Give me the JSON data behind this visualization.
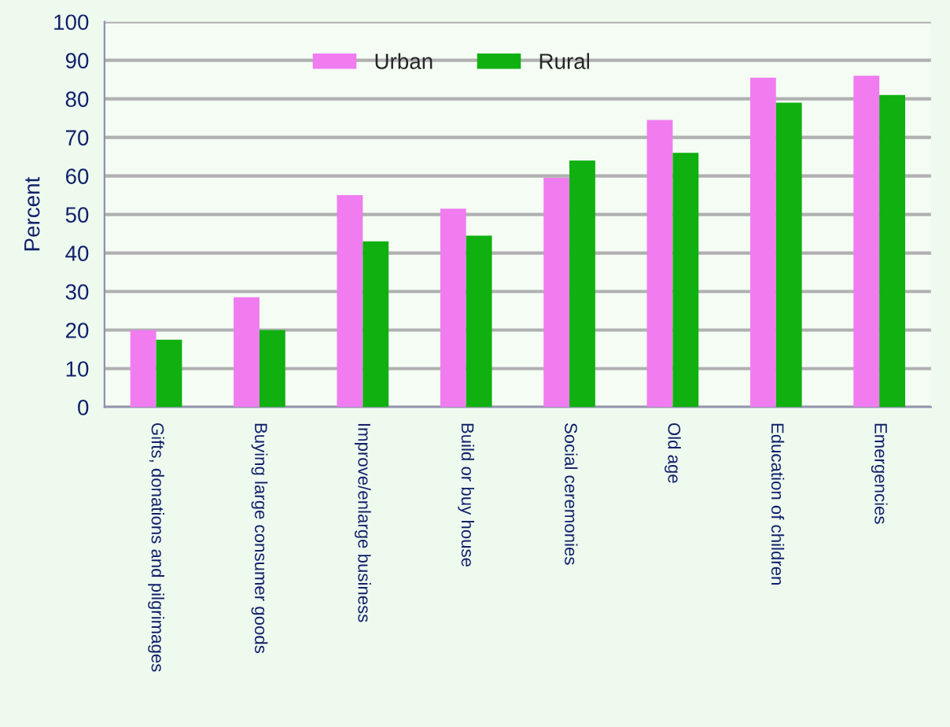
{
  "chart_data": {
    "type": "bar",
    "ylabel": "Percent",
    "categories": [
      "Gifts, donations and pilgrimages",
      "Buying large consumer goods",
      "Improve/enlarge business",
      "Build or buy house",
      "Social ceremonies",
      "Old age",
      "Education of children",
      "Emergencies"
    ],
    "series": [
      {
        "name": "Urban",
        "color": "#f07cf0",
        "values": [
          20,
          28.5,
          55,
          51.5,
          59.5,
          74.5,
          85.5,
          86
        ]
      },
      {
        "name": "Rural",
        "color": "#10b010",
        "values": [
          17.5,
          20,
          43,
          44.5,
          64,
          66,
          79,
          81
        ]
      }
    ],
    "ylim": [
      0,
      100
    ],
    "yticks": [
      0,
      10,
      20,
      30,
      40,
      50,
      60,
      70,
      80,
      90,
      100
    ],
    "grid": "y",
    "legend": "top"
  }
}
